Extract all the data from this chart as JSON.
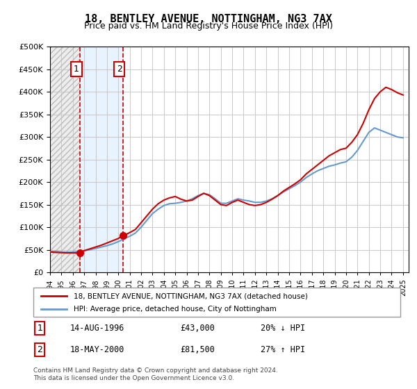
{
  "title": "18, BENTLEY AVENUE, NOTTINGHAM, NG3 7AX",
  "subtitle": "Price paid vs. HM Land Registry's House Price Index (HPI)",
  "legend_line1": "18, BENTLEY AVENUE, NOTTINGHAM, NG3 7AX (detached house)",
  "legend_line2": "HPI: Average price, detached house, City of Nottingham",
  "footnote": "Contains HM Land Registry data © Crown copyright and database right 2024.\nThis data is licensed under the Open Government Licence v3.0.",
  "transaction1_label": "1",
  "transaction1_date": "14-AUG-1996",
  "transaction1_price": "£43,000",
  "transaction1_hpi": "20% ↓ HPI",
  "transaction1_year": 1996.62,
  "transaction1_value": 43000,
  "transaction2_label": "2",
  "transaction2_date": "18-MAY-2000",
  "transaction2_price": "£81,500",
  "transaction2_hpi": "27% ↑ HPI",
  "transaction2_year": 2000.38,
  "transaction2_value": 81500,
  "price_color": "#cc0000",
  "hpi_color": "#6699cc",
  "hpi_data": [
    [
      1994.0,
      46000
    ],
    [
      1994.5,
      46500
    ],
    [
      1995.0,
      45000
    ],
    [
      1995.5,
      44500
    ],
    [
      1996.0,
      45000
    ],
    [
      1996.5,
      46000
    ],
    [
      1997.0,
      48000
    ],
    [
      1997.5,
      50000
    ],
    [
      1998.0,
      53000
    ],
    [
      1998.5,
      56000
    ],
    [
      1999.0,
      59000
    ],
    [
      1999.5,
      63000
    ],
    [
      2000.0,
      68000
    ],
    [
      2000.5,
      74000
    ],
    [
      2001.0,
      80000
    ],
    [
      2001.5,
      87000
    ],
    [
      2002.0,
      100000
    ],
    [
      2002.5,
      115000
    ],
    [
      2003.0,
      130000
    ],
    [
      2003.5,
      140000
    ],
    [
      2004.0,
      148000
    ],
    [
      2004.5,
      152000
    ],
    [
      2005.0,
      153000
    ],
    [
      2005.5,
      155000
    ],
    [
      2006.0,
      158000
    ],
    [
      2006.5,
      163000
    ],
    [
      2007.0,
      170000
    ],
    [
      2007.5,
      175000
    ],
    [
      2008.0,
      172000
    ],
    [
      2008.5,
      163000
    ],
    [
      2009.0,
      153000
    ],
    [
      2009.5,
      153000
    ],
    [
      2010.0,
      158000
    ],
    [
      2010.5,
      163000
    ],
    [
      2011.0,
      160000
    ],
    [
      2011.5,
      158000
    ],
    [
      2012.0,
      155000
    ],
    [
      2012.5,
      155000
    ],
    [
      2013.0,
      158000
    ],
    [
      2013.5,
      163000
    ],
    [
      2014.0,
      170000
    ],
    [
      2014.5,
      178000
    ],
    [
      2015.0,
      185000
    ],
    [
      2015.5,
      192000
    ],
    [
      2016.0,
      200000
    ],
    [
      2016.5,
      210000
    ],
    [
      2017.0,
      218000
    ],
    [
      2017.5,
      225000
    ],
    [
      2018.0,
      230000
    ],
    [
      2018.5,
      235000
    ],
    [
      2019.0,
      238000
    ],
    [
      2019.5,
      242000
    ],
    [
      2020.0,
      245000
    ],
    [
      2020.5,
      255000
    ],
    [
      2021.0,
      270000
    ],
    [
      2021.5,
      290000
    ],
    [
      2022.0,
      310000
    ],
    [
      2022.5,
      320000
    ],
    [
      2023.0,
      315000
    ],
    [
      2023.5,
      310000
    ],
    [
      2024.0,
      305000
    ],
    [
      2024.5,
      300000
    ],
    [
      2025.0,
      298000
    ]
  ],
  "price_data": [
    [
      1994.0,
      45000
    ],
    [
      1994.5,
      44000
    ],
    [
      1995.0,
      43500
    ],
    [
      1995.5,
      43000
    ],
    [
      1996.0,
      43000
    ],
    [
      1996.62,
      43000
    ],
    [
      1997.0,
      48000
    ],
    [
      1997.5,
      52000
    ],
    [
      1998.0,
      56000
    ],
    [
      1998.5,
      60000
    ],
    [
      1999.0,
      65000
    ],
    [
      1999.5,
      70000
    ],
    [
      2000.0,
      75000
    ],
    [
      2000.38,
      81500
    ],
    [
      2000.5,
      82000
    ],
    [
      2001.0,
      88000
    ],
    [
      2001.5,
      95000
    ],
    [
      2002.0,
      110000
    ],
    [
      2002.5,
      125000
    ],
    [
      2003.0,
      140000
    ],
    [
      2003.5,
      152000
    ],
    [
      2004.0,
      160000
    ],
    [
      2004.5,
      165000
    ],
    [
      2005.0,
      168000
    ],
    [
      2005.5,
      162000
    ],
    [
      2006.0,
      158000
    ],
    [
      2006.5,
      160000
    ],
    [
      2007.0,
      168000
    ],
    [
      2007.5,
      175000
    ],
    [
      2008.0,
      170000
    ],
    [
      2008.5,
      160000
    ],
    [
      2009.0,
      150000
    ],
    [
      2009.5,
      148000
    ],
    [
      2010.0,
      155000
    ],
    [
      2010.5,
      160000
    ],
    [
      2011.0,
      155000
    ],
    [
      2011.5,
      150000
    ],
    [
      2012.0,
      148000
    ],
    [
      2012.5,
      150000
    ],
    [
      2013.0,
      155000
    ],
    [
      2013.5,
      162000
    ],
    [
      2014.0,
      170000
    ],
    [
      2014.5,
      180000
    ],
    [
      2015.0,
      188000
    ],
    [
      2015.5,
      196000
    ],
    [
      2016.0,
      205000
    ],
    [
      2016.5,
      218000
    ],
    [
      2017.0,
      228000
    ],
    [
      2017.5,
      238000
    ],
    [
      2018.0,
      248000
    ],
    [
      2018.5,
      258000
    ],
    [
      2019.0,
      265000
    ],
    [
      2019.5,
      272000
    ],
    [
      2020.0,
      275000
    ],
    [
      2020.5,
      288000
    ],
    [
      2021.0,
      305000
    ],
    [
      2021.5,
      330000
    ],
    [
      2022.0,
      360000
    ],
    [
      2022.5,
      385000
    ],
    [
      2023.0,
      400000
    ],
    [
      2023.5,
      410000
    ],
    [
      2024.0,
      405000
    ],
    [
      2024.5,
      398000
    ],
    [
      2025.0,
      393000
    ]
  ],
  "ylim": [
    0,
    500000
  ],
  "xlim": [
    1994,
    2025.5
  ],
  "yticks": [
    0,
    50000,
    100000,
    150000,
    200000,
    250000,
    300000,
    350000,
    400000,
    450000,
    500000
  ],
  "xticks": [
    1994,
    1995,
    1996,
    1997,
    1998,
    1999,
    2000,
    2001,
    2002,
    2003,
    2004,
    2005,
    2006,
    2007,
    2008,
    2009,
    2010,
    2011,
    2012,
    2013,
    2014,
    2015,
    2016,
    2017,
    2018,
    2019,
    2020,
    2021,
    2022,
    2023,
    2024,
    2025
  ],
  "bg_hatch_color": "#dddddd",
  "bg_shade_color": "#ddeeff",
  "transaction1_shade_start": 1994.0,
  "transaction1_shade_end": 1996.62,
  "transaction2_shade_start": 1996.62,
  "transaction2_shade_end": 2000.38
}
